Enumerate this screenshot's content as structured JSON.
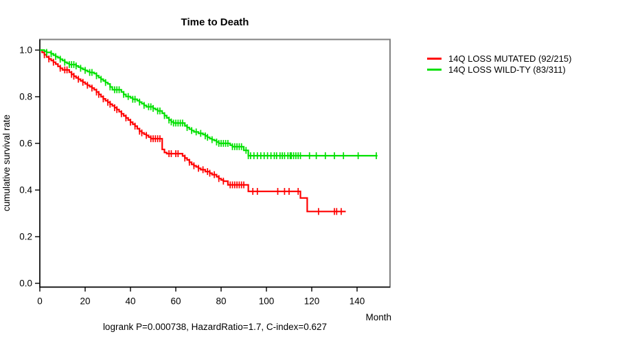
{
  "chart_data": {
    "type": "line",
    "subtype": "kaplan-meier-step-curves",
    "title": "Time to Death",
    "xlabel": "Month",
    "ylabel": "cumulative survival rate",
    "annotation": "logrank P=0.000738, HazardRatio=1.7, C-index=0.627",
    "xlim": [
      0,
      154.5
    ],
    "ylim": [
      0.0,
      1.0
    ],
    "xticks": [
      0,
      20,
      40,
      60,
      80,
      100,
      120,
      140
    ],
    "yticks": [
      0.0,
      0.2,
      0.4,
      0.6,
      0.8,
      1.0
    ],
    "grid": false,
    "legend_position": "right-outside",
    "frame_color": "#808080",
    "axis_color": "#000000",
    "series": [
      {
        "name": "14Q LOSS MUTATED (92/215)",
        "color": "#FF0000",
        "end_month": 135,
        "steps": [
          [
            0,
            1.0
          ],
          [
            1,
            0.99
          ],
          [
            2,
            0.98
          ],
          [
            3,
            0.97
          ],
          [
            4,
            0.962
          ],
          [
            5,
            0.955
          ],
          [
            6,
            0.948
          ],
          [
            7,
            0.94
          ],
          [
            8,
            0.93
          ],
          [
            9,
            0.922
          ],
          [
            10,
            0.915
          ],
          [
            13,
            0.905
          ],
          [
            14,
            0.896
          ],
          [
            15,
            0.888
          ],
          [
            16,
            0.881
          ],
          [
            17,
            0.875
          ],
          [
            18,
            0.868
          ],
          [
            19,
            0.862
          ],
          [
            20,
            0.855
          ],
          [
            21,
            0.849
          ],
          [
            22,
            0.843
          ],
          [
            23,
            0.837
          ],
          [
            24,
            0.83
          ],
          [
            25,
            0.82
          ],
          [
            26,
            0.81
          ],
          [
            27,
            0.8
          ],
          [
            28,
            0.791
          ],
          [
            29,
            0.783
          ],
          [
            30,
            0.776
          ],
          [
            31,
            0.768
          ],
          [
            32,
            0.761
          ],
          [
            33,
            0.753
          ],
          [
            34,
            0.745
          ],
          [
            35,
            0.736
          ],
          [
            36,
            0.727
          ],
          [
            37,
            0.718
          ],
          [
            38,
            0.709
          ],
          [
            39,
            0.7
          ],
          [
            40,
            0.691
          ],
          [
            41,
            0.682
          ],
          [
            42,
            0.674
          ],
          [
            43,
            0.663
          ],
          [
            44,
            0.652
          ],
          [
            45,
            0.645
          ],
          [
            46,
            0.639
          ],
          [
            47,
            0.634
          ],
          [
            48,
            0.627
          ],
          [
            49,
            0.62
          ],
          [
            54,
            0.574
          ],
          [
            55,
            0.561
          ],
          [
            56,
            0.556
          ],
          [
            63,
            0.546
          ],
          [
            64,
            0.537
          ],
          [
            65,
            0.529
          ],
          [
            66,
            0.519
          ],
          [
            67,
            0.51
          ],
          [
            68,
            0.504
          ],
          [
            69,
            0.499
          ],
          [
            70,
            0.493
          ],
          [
            71,
            0.487
          ],
          [
            73,
            0.479
          ],
          [
            75,
            0.472
          ],
          [
            76,
            0.466
          ],
          [
            78,
            0.457
          ],
          [
            79,
            0.449
          ],
          [
            80,
            0.443
          ],
          [
            81,
            0.438
          ],
          [
            83,
            0.422
          ],
          [
            92,
            0.394
          ],
          [
            115,
            0.366
          ],
          [
            118,
            0.308
          ]
        ],
        "censor_months": [
          2,
          4,
          6,
          9,
          11,
          12,
          14,
          15,
          17,
          19,
          21,
          23,
          25,
          26,
          28,
          30,
          31,
          33,
          34,
          36,
          38,
          40,
          42,
          44,
          45,
          47,
          49,
          50,
          51,
          52,
          53,
          57,
          58,
          60,
          61,
          64,
          66,
          68,
          70,
          72,
          74,
          75,
          77,
          79,
          81,
          84,
          85,
          86,
          87,
          88,
          89,
          90,
          94,
          96,
          105,
          108,
          110,
          114,
          123,
          130,
          131,
          133
        ]
      },
      {
        "name": "14Q LOSS WILD-TY (83/311)",
        "color": "#00E000",
        "end_month": 149,
        "steps": [
          [
            0,
            1.0
          ],
          [
            2,
            0.995
          ],
          [
            3,
            0.99
          ],
          [
            5,
            0.984
          ],
          [
            6,
            0.978
          ],
          [
            7,
            0.972
          ],
          [
            8,
            0.967
          ],
          [
            9,
            0.961
          ],
          [
            10,
            0.955
          ],
          [
            11,
            0.948
          ],
          [
            12,
            0.943
          ],
          [
            13,
            0.938
          ],
          [
            16,
            0.932
          ],
          [
            17,
            0.927
          ],
          [
            18,
            0.922
          ],
          [
            19,
            0.917
          ],
          [
            20,
            0.913
          ],
          [
            21,
            0.908
          ],
          [
            22,
            0.904
          ],
          [
            24,
            0.899
          ],
          [
            25,
            0.89
          ],
          [
            26,
            0.882
          ],
          [
            27,
            0.875
          ],
          [
            28,
            0.868
          ],
          [
            29,
            0.861
          ],
          [
            30,
            0.855
          ],
          [
            31,
            0.842
          ],
          [
            32,
            0.83
          ],
          [
            36,
            0.82
          ],
          [
            37,
            0.81
          ],
          [
            38,
            0.801
          ],
          [
            40,
            0.795
          ],
          [
            41,
            0.789
          ],
          [
            43,
            0.783
          ],
          [
            44,
            0.777
          ],
          [
            45,
            0.77
          ],
          [
            46,
            0.763
          ],
          [
            47,
            0.757
          ],
          [
            50,
            0.75
          ],
          [
            51,
            0.745
          ],
          [
            52,
            0.739
          ],
          [
            54,
            0.729
          ],
          [
            55,
            0.719
          ],
          [
            56,
            0.709
          ],
          [
            57,
            0.7
          ],
          [
            58,
            0.692
          ],
          [
            59,
            0.687
          ],
          [
            64,
            0.675
          ],
          [
            65,
            0.668
          ],
          [
            66,
            0.661
          ],
          [
            67,
            0.655
          ],
          [
            68,
            0.649
          ],
          [
            70,
            0.643
          ],
          [
            72,
            0.638
          ],
          [
            73,
            0.632
          ],
          [
            74,
            0.626
          ],
          [
            75,
            0.62
          ],
          [
            76,
            0.616
          ],
          [
            77,
            0.612
          ],
          [
            78,
            0.606
          ],
          [
            79,
            0.6
          ],
          [
            84,
            0.592
          ],
          [
            85,
            0.586
          ],
          [
            90,
            0.57
          ],
          [
            92,
            0.547
          ]
        ],
        "censor_months": [
          3,
          5,
          7,
          9,
          11,
          13,
          14,
          15,
          16,
          18,
          20,
          22,
          23,
          25,
          27,
          29,
          31,
          33,
          34,
          35,
          37,
          39,
          41,
          42,
          44,
          46,
          48,
          49,
          50,
          52,
          53,
          55,
          57,
          58,
          59,
          60,
          61,
          62,
          63,
          65,
          67,
          69,
          71,
          73,
          74,
          76,
          78,
          79,
          80,
          81,
          82,
          83,
          85,
          86,
          87,
          88,
          89,
          91,
          92,
          93,
          94.5,
          96,
          97.5,
          99,
          100.5,
          102,
          103.5,
          104.5,
          106,
          107,
          108,
          109.5,
          110.5,
          111,
          112,
          113,
          114,
          115,
          119,
          122,
          126,
          130,
          134,
          140.5,
          148.5
        ]
      }
    ]
  }
}
